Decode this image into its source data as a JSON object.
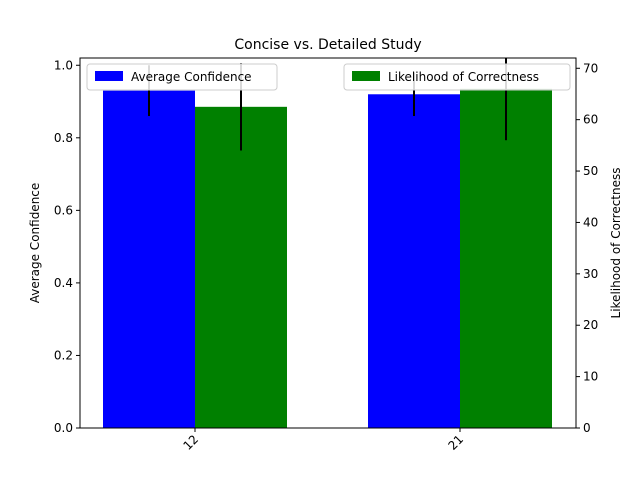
{
  "chart_data": {
    "type": "bar",
    "title": "Concise vs. Detailed Study",
    "categories": [
      "12",
      "21"
    ],
    "left_axis": {
      "label": "Average Confidence",
      "color": "#0000ff",
      "ylim": [
        0,
        1.02
      ],
      "ticks": [
        "0.0",
        "0.2",
        "0.4",
        "0.6",
        "0.8",
        "1.0"
      ]
    },
    "right_axis": {
      "label": "Likelihood of Correctness",
      "color": "#008000",
      "ylim": [
        0,
        72
      ],
      "ticks": [
        "0",
        "10",
        "20",
        "30",
        "40",
        "50",
        "60",
        "70"
      ]
    },
    "series": [
      {
        "name": "Average Confidence",
        "axis": "left",
        "color": "#0000ff",
        "values": [
          0.93,
          0.92
        ],
        "error": [
          0.07,
          0.06
        ],
        "legend_position": "top-left"
      },
      {
        "name": "Likelihood of Correctness",
        "axis": "right",
        "color": "#008000",
        "values": [
          62.5,
          66
        ],
        "error": [
          8.5,
          10
        ],
        "legend_position": "top-right"
      }
    ],
    "grid": false
  }
}
